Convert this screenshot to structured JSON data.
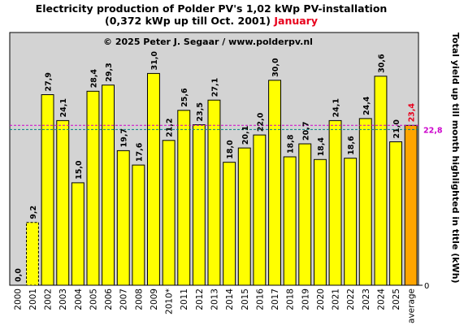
{
  "title_line1": "Electricity production  of Polder  PV's  1,02 kWp PV-installation",
  "title_line2": "(0,372 kWp up till Oct. 2001)",
  "title_month": "January",
  "copyright": "© 2025 Peter J. Segaar / www.polderpv.nl",
  "colors": {
    "plot_bg": "#d3d3d3",
    "bar": "#ffff00",
    "average_bar": "#ffa500",
    "average_line": "#cc00cc",
    "value_line": "#008080",
    "average_label": "#e8001c"
  },
  "chart_data": {
    "type": "bar",
    "categories": [
      "2000",
      "2001",
      "2002",
      "2003",
      "2004",
      "2005",
      "2006",
      "2007",
      "2008",
      "2009",
      "2010*",
      "2011",
      "2012",
      "2013",
      "2014",
      "2015",
      "2016",
      "2017",
      "2018",
      "2019",
      "2020",
      "2021",
      "2022",
      "2023",
      "2024",
      "2025",
      "average"
    ],
    "values": [
      0.0,
      9.2,
      27.9,
      24.1,
      15.0,
      28.4,
      29.3,
      19.7,
      17.6,
      31.0,
      21.2,
      25.6,
      23.5,
      27.1,
      18.0,
      20.1,
      22.0,
      30.0,
      18.8,
      20.7,
      18.4,
      24.1,
      18.6,
      24.4,
      30.6,
      21.0,
      23.4
    ],
    "value_labels": [
      "0,0",
      "9,2",
      "27,9",
      "24,1",
      "15,0",
      "28,4",
      "29,3",
      "19,7",
      "17,6",
      "31,0",
      "21,2",
      "25,6",
      "23,5",
      "27,1",
      "18,0",
      "20,1",
      "22,0",
      "30,0",
      "18,8",
      "20,7",
      "18,4",
      "24,1",
      "18,6",
      "24,4",
      "30,6",
      "21,0",
      "23,4"
    ],
    "dashed_bars": [
      "2000",
      "2001"
    ],
    "reference_line_value": 22.8,
    "reference_line_label": "22,8",
    "average_line_value": 23.4,
    "ylim": [
      0,
      37
    ],
    "y_tick_labels": [
      "0"
    ],
    "ylabel": "Total yield up till month highlighted in title (kWh)",
    "xlabel": "",
    "grid": false
  }
}
